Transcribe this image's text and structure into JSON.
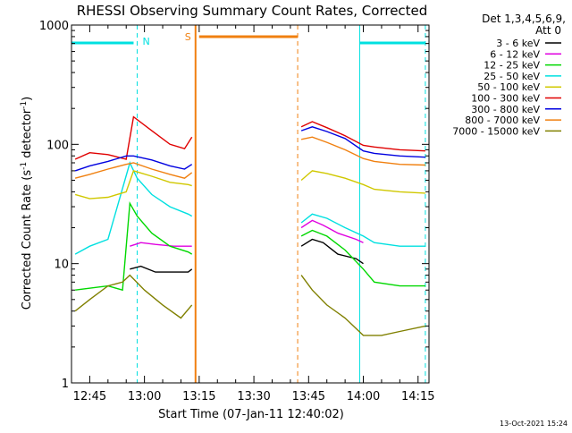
{
  "chart_data": {
    "type": "line",
    "title": "RHESSI Observing Summary Count Rates, Corrected",
    "xlabel": "Start Time (07-Jan-11 12:40:02)",
    "ylabel_main": "Corrected Count Rate (s",
    "ylabel_sup1": "-1",
    "ylabel_mid": " detector",
    "ylabel_sup2": "-1",
    "ylabel_end": ")",
    "footer": "13-Oct-2021 15:24",
    "y_scale": "log",
    "ylim": [
      1,
      1000
    ],
    "xlim": [
      "12:40",
      "14:18"
    ],
    "grid": false,
    "legend_position": "right",
    "legend_header": [
      "Det 1,3,4,5,6,9,",
      "Att 0"
    ],
    "x_ticks": [
      "12:45",
      "13:00",
      "13:15",
      "13:30",
      "13:45",
      "14:00",
      "14:15"
    ],
    "y_ticks": [
      "1",
      "10",
      "100",
      "1000"
    ],
    "flag_labels": {
      "night": "N",
      "saa": "S"
    },
    "series": [
      {
        "name": "3 - 6 keV",
        "color": "#000000",
        "points": [
          [
            "12:56",
            9
          ],
          [
            "12:59",
            9.5
          ],
          [
            "13:03",
            8.5
          ],
          [
            "13:08",
            8.5
          ],
          [
            "13:12",
            8.5
          ],
          [
            "13:13",
            9
          ],
          [
            "13:43",
            14
          ],
          [
            "13:46",
            16
          ],
          [
            "13:49",
            15
          ],
          [
            "13:53",
            12
          ],
          [
            "13:58",
            11
          ],
          [
            "14:00",
            10
          ]
        ]
      },
      {
        "name": "6 - 12 keV",
        "color": "#e000e0",
        "points": [
          [
            "12:56",
            14
          ],
          [
            "12:59",
            15
          ],
          [
            "13:03",
            14.5
          ],
          [
            "13:08",
            14
          ],
          [
            "13:12",
            14
          ],
          [
            "13:13",
            14
          ],
          [
            "13:43",
            20
          ],
          [
            "13:46",
            23
          ],
          [
            "13:49",
            21
          ],
          [
            "13:53",
            18
          ],
          [
            "13:58",
            16
          ],
          [
            "14:00",
            15
          ]
        ]
      },
      {
        "name": "12 - 25 keV",
        "color": "#00d800",
        "points": [
          [
            "12:41",
            6
          ],
          [
            "12:50",
            6.5
          ],
          [
            "12:54",
            6
          ],
          [
            "12:56",
            32
          ],
          [
            "12:58",
            25
          ],
          [
            "13:02",
            18
          ],
          [
            "13:07",
            14
          ],
          [
            "13:12",
            12.5
          ],
          [
            "13:13",
            12
          ],
          [
            "13:43",
            17
          ],
          [
            "13:46",
            19
          ],
          [
            "13:50",
            17
          ],
          [
            "13:55",
            13
          ],
          [
            "14:00",
            9
          ],
          [
            "14:03",
            7
          ],
          [
            "14:10",
            6.5
          ],
          [
            "14:17",
            6.5
          ]
        ]
      },
      {
        "name": "25 - 50 keV",
        "color": "#00e0e0",
        "points": [
          [
            "12:41",
            12
          ],
          [
            "12:45",
            14
          ],
          [
            "12:50",
            16
          ],
          [
            "12:56",
            70
          ],
          [
            "12:58",
            52
          ],
          [
            "13:02",
            38
          ],
          [
            "13:07",
            30
          ],
          [
            "13:12",
            26
          ],
          [
            "13:13",
            25
          ],
          [
            "13:43",
            22
          ],
          [
            "13:46",
            26
          ],
          [
            "13:50",
            24
          ],
          [
            "13:55",
            20
          ],
          [
            "14:00",
            17
          ],
          [
            "14:03",
            15
          ],
          [
            "14:10",
            14
          ],
          [
            "14:17",
            14
          ]
        ]
      },
      {
        "name": "50 - 100 keV",
        "color": "#d0c800",
        "points": [
          [
            "12:41",
            38
          ],
          [
            "12:45",
            35
          ],
          [
            "12:50",
            36
          ],
          [
            "12:55",
            40
          ],
          [
            "12:57",
            60
          ],
          [
            "13:02",
            54
          ],
          [
            "13:07",
            48
          ],
          [
            "13:12",
            46
          ],
          [
            "13:13",
            45
          ],
          [
            "13:43",
            50
          ],
          [
            "13:46",
            60
          ],
          [
            "13:50",
            57
          ],
          [
            "13:55",
            52
          ],
          [
            "14:00",
            46
          ],
          [
            "14:03",
            42
          ],
          [
            "14:10",
            40
          ],
          [
            "14:17",
            39
          ]
        ]
      },
      {
        "name": "100 - 300 keV",
        "color": "#e00000",
        "points": [
          [
            "12:41",
            75
          ],
          [
            "12:45",
            85
          ],
          [
            "12:50",
            82
          ],
          [
            "12:55",
            75
          ],
          [
            "12:57",
            170
          ],
          [
            "13:02",
            130
          ],
          [
            "13:07",
            100
          ],
          [
            "13:11",
            92
          ],
          [
            "13:13",
            115
          ],
          [
            "13:43",
            140
          ],
          [
            "13:46",
            155
          ],
          [
            "13:50",
            138
          ],
          [
            "13:55",
            118
          ],
          [
            "14:00",
            98
          ],
          [
            "14:03",
            95
          ],
          [
            "14:10",
            90
          ],
          [
            "14:17",
            88
          ]
        ]
      },
      {
        "name": "300 - 800 keV",
        "color": "#0000e0",
        "points": [
          [
            "12:41",
            60
          ],
          [
            "12:45",
            66
          ],
          [
            "12:50",
            72
          ],
          [
            "12:55",
            80
          ],
          [
            "12:57",
            80
          ],
          [
            "13:02",
            74
          ],
          [
            "13:07",
            66
          ],
          [
            "13:11",
            62
          ],
          [
            "13:13",
            68
          ],
          [
            "13:43",
            130
          ],
          [
            "13:46",
            140
          ],
          [
            "13:50",
            128
          ],
          [
            "13:55",
            112
          ],
          [
            "14:00",
            88
          ],
          [
            "14:03",
            84
          ],
          [
            "14:10",
            80
          ],
          [
            "14:17",
            78
          ]
        ]
      },
      {
        "name": "800 - 7000 keV",
        "color": "#f08010",
        "points": [
          [
            "12:41",
            52
          ],
          [
            "12:45",
            56
          ],
          [
            "12:50",
            62
          ],
          [
            "12:55",
            68
          ],
          [
            "12:57",
            70
          ],
          [
            "13:02",
            62
          ],
          [
            "13:07",
            56
          ],
          [
            "13:11",
            52
          ],
          [
            "13:13",
            58
          ],
          [
            "13:43",
            110
          ],
          [
            "13:46",
            115
          ],
          [
            "13:50",
            104
          ],
          [
            "13:55",
            90
          ],
          [
            "14:00",
            76
          ],
          [
            "14:03",
            72
          ],
          [
            "14:10",
            68
          ],
          [
            "14:17",
            67
          ]
        ]
      },
      {
        "name": "7000 - 15000 keV",
        "color": "#808000",
        "points": [
          [
            "12:41",
            4
          ],
          [
            "12:45",
            5
          ],
          [
            "12:50",
            6.5
          ],
          [
            "12:54",
            7
          ],
          [
            "12:56",
            8
          ],
          [
            "13:00",
            6
          ],
          [
            "13:05",
            4.5
          ],
          [
            "13:10",
            3.5
          ],
          [
            "13:13",
            4.5
          ],
          [
            "13:43",
            8
          ],
          [
            "13:46",
            6
          ],
          [
            "13:50",
            4.5
          ],
          [
            "13:55",
            3.5
          ],
          [
            "14:00",
            2.5
          ],
          [
            "14:05",
            2.5
          ],
          [
            "14:10",
            2.7
          ],
          [
            "14:17",
            3
          ]
        ]
      }
    ]
  }
}
